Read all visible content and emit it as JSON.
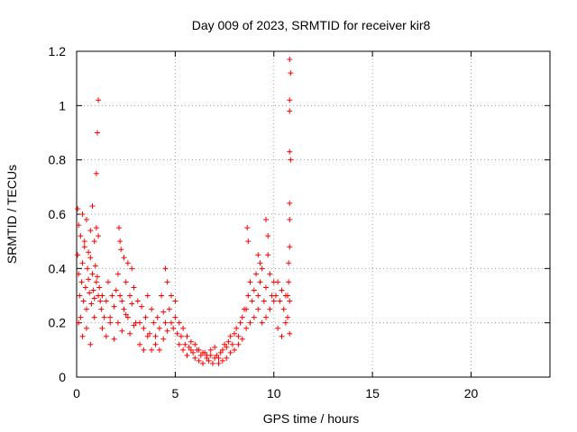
{
  "chart_data": {
    "type": "scatter",
    "title": "Day 009 of 2023, SRMTID for receiver kir8",
    "xlabel": "GPS time / hours",
    "ylabel": "SRMTID / TECUs",
    "xlim": [
      0,
      24
    ],
    "ylim": [
      0,
      1.2
    ],
    "xticks": [
      0,
      5,
      10,
      15,
      20
    ],
    "yticks": [
      0,
      0.2,
      0.4,
      0.6,
      0.8,
      1.0,
      1.2
    ],
    "xtick_labels": [
      "0",
      "5",
      "10",
      "15",
      "20"
    ],
    "ytick_labels": [
      "0",
      "0.2",
      "0.4",
      "0.6",
      "0.8",
      "1",
      "1.2"
    ],
    "grid": true,
    "marker": "+",
    "color": "#ff0000",
    "series": [
      {
        "name": "SRMTID",
        "x": [
          0.05,
          0.1,
          0.15,
          0.2,
          0.25,
          0.3,
          0.35,
          0.4,
          0.45,
          0.5,
          0.55,
          0.6,
          0.65,
          0.7,
          0.75,
          0.8,
          0.85,
          0.9,
          0.95,
          1.0,
          1.05,
          1.1,
          1.15,
          1.2,
          0.05,
          0.1,
          0.2,
          0.3,
          0.4,
          0.5,
          0.6,
          0.7,
          0.8,
          0.9,
          1.0,
          1.1,
          0.1,
          0.3,
          0.5,
          0.7,
          0.9,
          1.0,
          1.05,
          1.1,
          1.25,
          1.3,
          1.4,
          1.5,
          1.6,
          1.7,
          1.8,
          1.9,
          2.0,
          2.1,
          2.2,
          2.3,
          2.4,
          2.5,
          2.6,
          2.7,
          2.8,
          2.9,
          3.0,
          1.3,
          1.5,
          1.7,
          1.9,
          2.1,
          2.3,
          2.5,
          2.7,
          2.9,
          2.15,
          2.2,
          2.25,
          2.4,
          2.6,
          2.8,
          3.1,
          3.2,
          3.3,
          3.4,
          3.5,
          3.6,
          3.7,
          3.8,
          3.9,
          4.0,
          4.1,
          4.2,
          4.3,
          4.4,
          4.5,
          4.6,
          4.7,
          4.8,
          4.9,
          5.0,
          3.2,
          3.4,
          3.6,
          3.8,
          4.0,
          4.2,
          4.4,
          4.5,
          4.6,
          4.8,
          5.0,
          5.1,
          5.2,
          5.3,
          5.4,
          5.5,
          5.6,
          5.7,
          5.8,
          5.9,
          6.0,
          6.1,
          6.2,
          6.3,
          6.4,
          6.5,
          6.6,
          6.7,
          6.8,
          6.9,
          7.0,
          5.2,
          5.4,
          5.6,
          5.8,
          6.0,
          6.2,
          6.4,
          6.6,
          6.8,
          7.0,
          7.1,
          7.2,
          7.3,
          7.4,
          7.5,
          7.6,
          7.7,
          7.8,
          7.9,
          8.0,
          8.1,
          8.2,
          8.3,
          8.4,
          8.5,
          7.2,
          7.4,
          7.6,
          7.8,
          8.0,
          8.2,
          8.4,
          8.6,
          8.7,
          8.8,
          8.9,
          9.0,
          9.1,
          9.2,
          9.3,
          9.4,
          9.5,
          9.6,
          9.7,
          9.8,
          9.9,
          10.0,
          8.6,
          8.8,
          9.0,
          9.2,
          9.4,
          9.6,
          9.8,
          10.0,
          8.65,
          8.7,
          9.2,
          9.3,
          9.6,
          9.7,
          10.1,
          10.2,
          10.3,
          10.4,
          10.5,
          10.6,
          10.7,
          10.8,
          10.2,
          10.4,
          10.6,
          10.8,
          10.75,
          10.8,
          10.8,
          10.8,
          10.85,
          10.8,
          10.8,
          10.8,
          10.85,
          10.8,
          10.7,
          10.75
        ],
        "y": [
          0.45,
          0.38,
          0.3,
          0.22,
          0.35,
          0.42,
          0.28,
          0.5,
          0.33,
          0.25,
          0.4,
          0.36,
          0.31,
          0.44,
          0.27,
          0.38,
          0.32,
          0.29,
          0.41,
          0.35,
          0.37,
          0.3,
          0.33,
          0.28,
          0.62,
          0.56,
          0.52,
          0.6,
          0.48,
          0.58,
          0.46,
          0.54,
          0.63,
          0.5,
          0.55,
          0.52,
          0.2,
          0.15,
          0.18,
          0.12,
          0.22,
          0.75,
          0.9,
          1.02,
          0.25,
          0.3,
          0.22,
          0.28,
          0.35,
          0.2,
          0.3,
          0.26,
          0.32,
          0.38,
          0.3,
          0.28,
          0.25,
          0.35,
          0.22,
          0.3,
          0.27,
          0.33,
          0.2,
          0.18,
          0.15,
          0.22,
          0.14,
          0.2,
          0.17,
          0.23,
          0.16,
          0.19,
          0.55,
          0.5,
          0.47,
          0.44,
          0.42,
          0.4,
          0.28,
          0.2,
          0.26,
          0.18,
          0.22,
          0.3,
          0.16,
          0.25,
          0.2,
          0.15,
          0.22,
          0.18,
          0.3,
          0.24,
          0.2,
          0.17,
          0.25,
          0.2,
          0.18,
          0.22,
          0.12,
          0.1,
          0.15,
          0.1,
          0.12,
          0.1,
          0.14,
          0.4,
          0.35,
          0.3,
          0.28,
          0.16,
          0.12,
          0.15,
          0.1,
          0.12,
          0.08,
          0.11,
          0.1,
          0.09,
          0.07,
          0.1,
          0.06,
          0.08,
          0.05,
          0.09,
          0.07,
          0.06,
          0.08,
          0.05,
          0.07,
          0.2,
          0.18,
          0.15,
          0.13,
          0.12,
          0.1,
          0.09,
          0.08,
          0.1,
          0.11,
          0.08,
          0.07,
          0.09,
          0.1,
          0.12,
          0.11,
          0.13,
          0.15,
          0.12,
          0.16,
          0.18,
          0.15,
          0.2,
          0.22,
          0.25,
          0.05,
          0.06,
          0.07,
          0.09,
          0.1,
          0.12,
          0.14,
          0.25,
          0.3,
          0.35,
          0.28,
          0.32,
          0.38,
          0.3,
          0.35,
          0.4,
          0.28,
          0.33,
          0.45,
          0.38,
          0.3,
          0.35,
          0.18,
          0.2,
          0.22,
          0.25,
          0.2,
          0.22,
          0.25,
          0.28,
          0.55,
          0.5,
          0.45,
          0.42,
          0.58,
          0.52,
          0.3,
          0.35,
          0.28,
          0.32,
          0.25,
          0.3,
          0.22,
          0.28,
          0.18,
          0.15,
          0.2,
          0.16,
          0.42,
          0.48,
          0.58,
          0.64,
          0.8,
          0.83,
          0.98,
          1.02,
          1.12,
          1.17,
          0.3,
          0.35
        ]
      }
    ]
  }
}
